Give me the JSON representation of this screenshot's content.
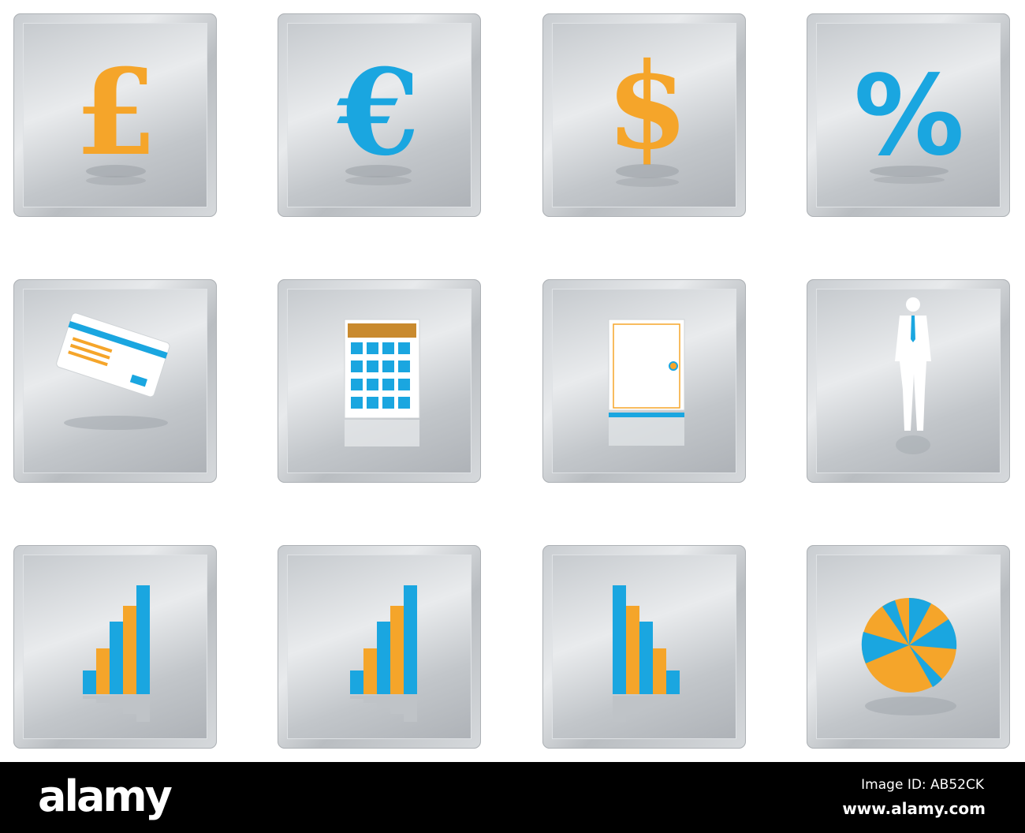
{
  "colors": {
    "orange": "#F5A52A",
    "blue": "#1AA6E0",
    "silver": "#C9CDD1"
  },
  "icons": [
    {
      "name": "pound-icon",
      "glyph": "£"
    },
    {
      "name": "euro-icon",
      "glyph": "€"
    },
    {
      "name": "dollar-icon",
      "glyph": "$"
    },
    {
      "name": "percent-icon",
      "glyph": "%"
    },
    {
      "name": "credit-card-icon"
    },
    {
      "name": "calculator-icon"
    },
    {
      "name": "safe-icon"
    },
    {
      "name": "businessman-icon"
    },
    {
      "name": "bar-chart-ascending-icon"
    },
    {
      "name": "bar-chart-ascending-icon"
    },
    {
      "name": "bar-chart-descending-icon"
    },
    {
      "name": "pie-chart-icon"
    }
  ],
  "footer": {
    "logo": "alamy",
    "image_id": "Image ID: AB52CK",
    "url": "www.alamy.com"
  }
}
